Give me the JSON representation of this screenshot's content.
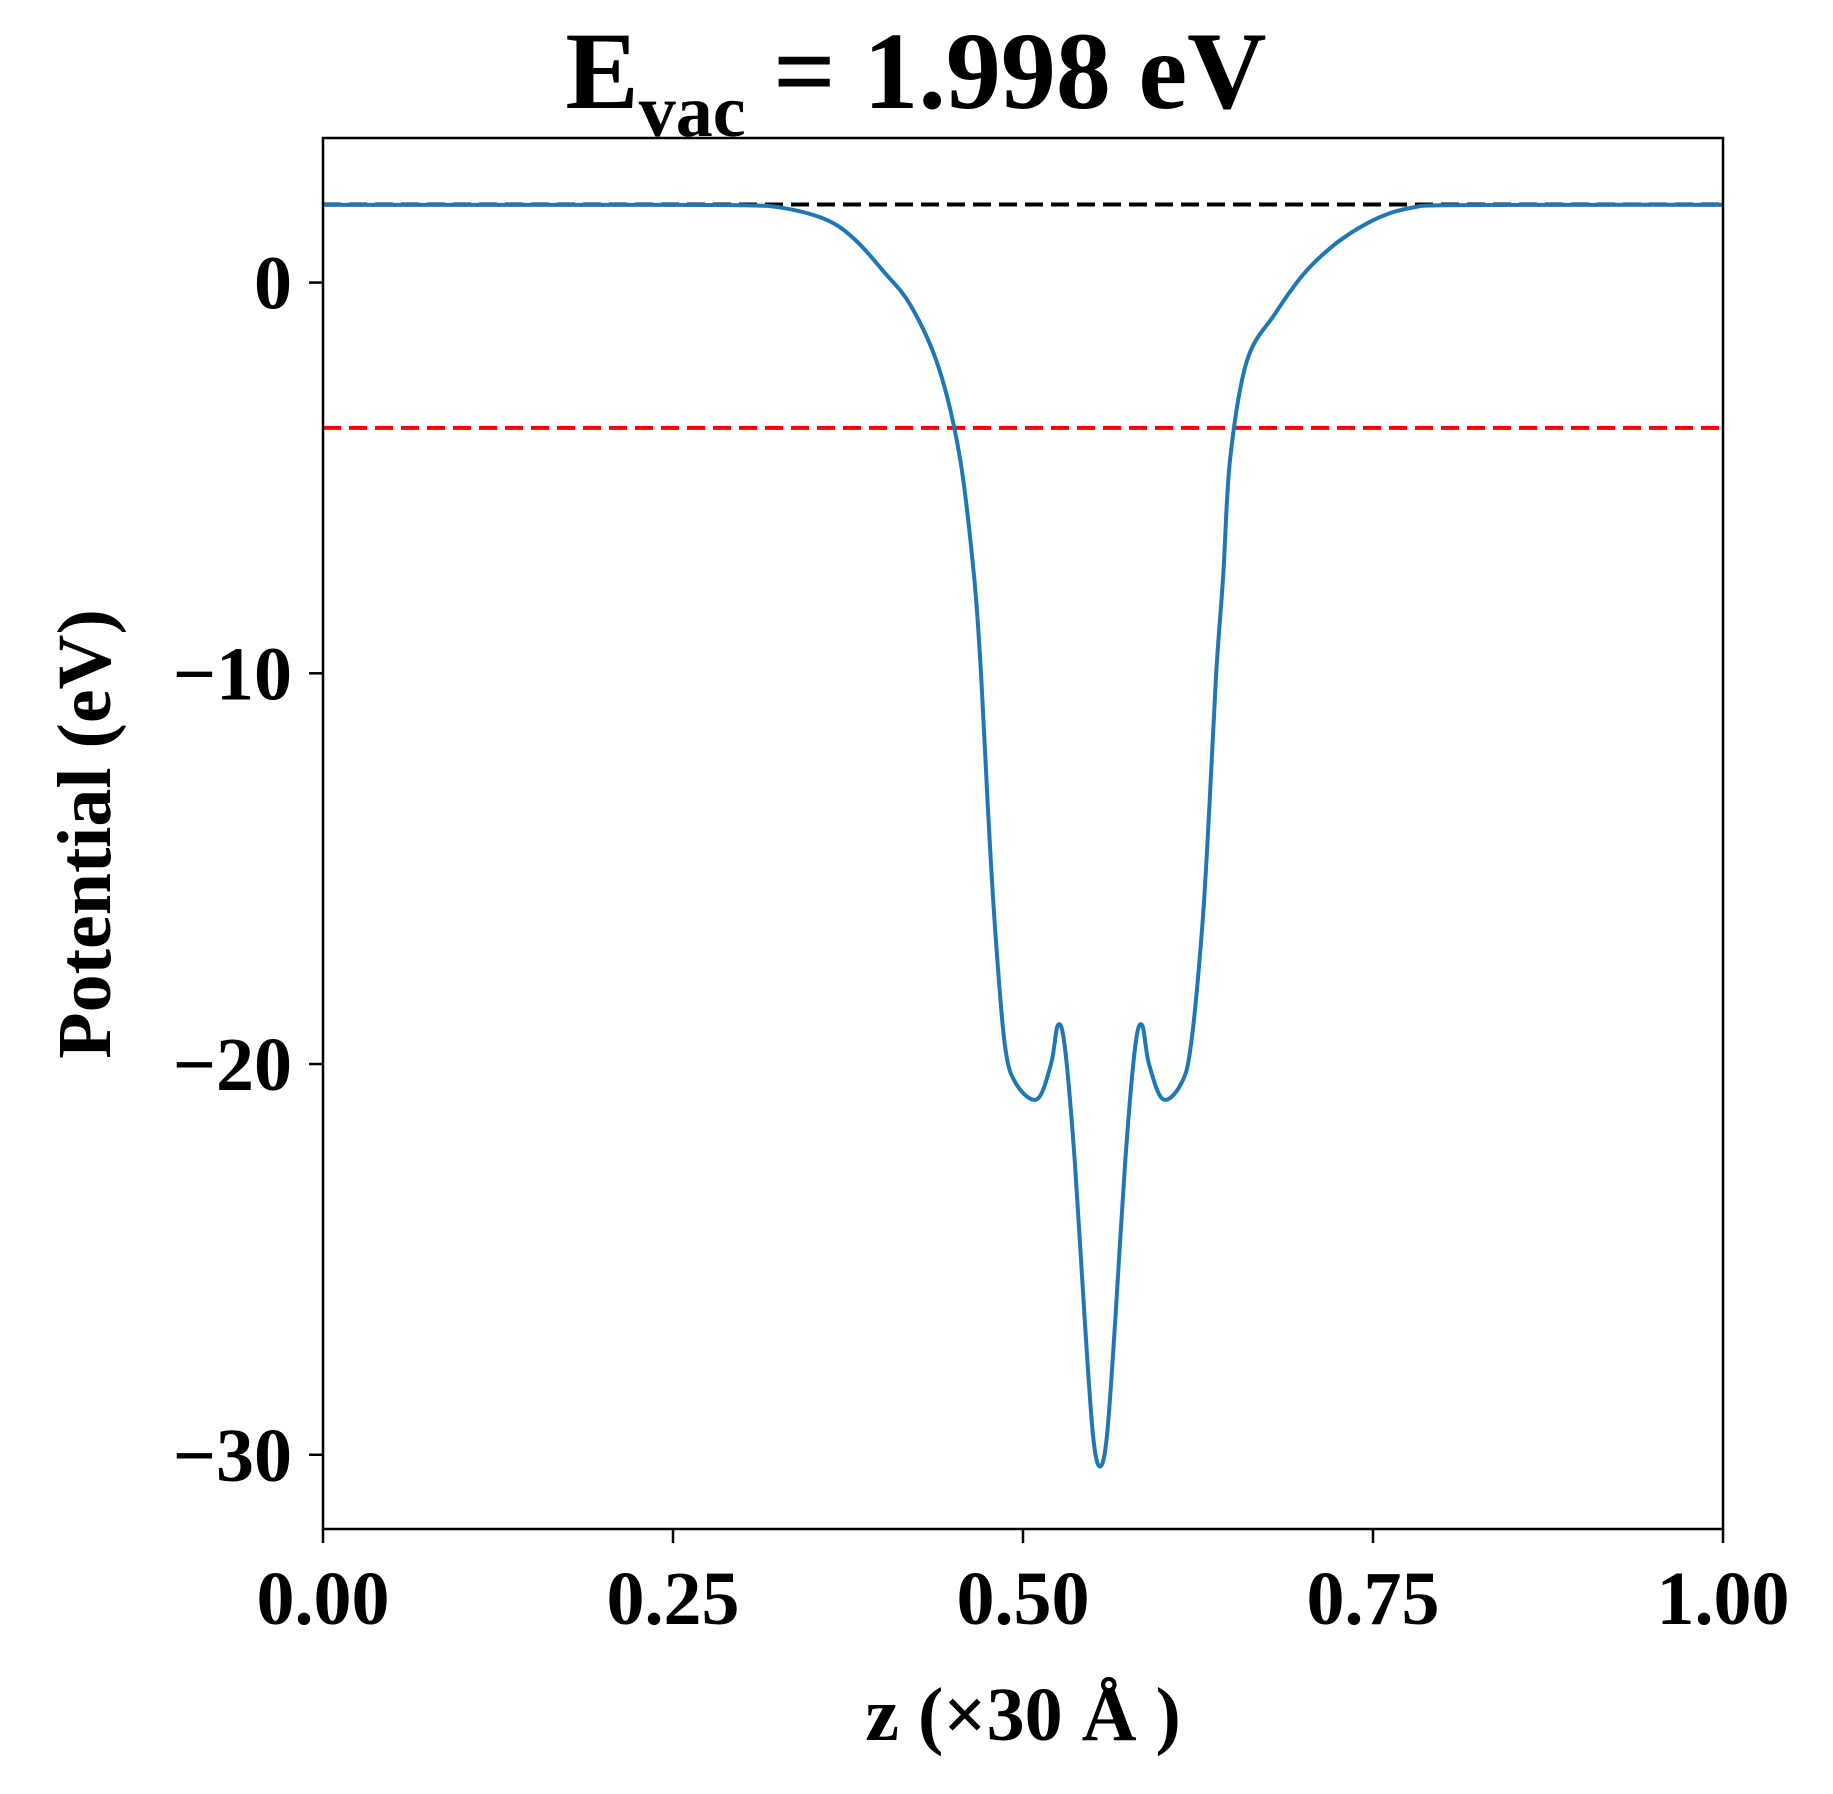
{
  "chart_data": {
    "type": "line",
    "title": {
      "main": "E",
      "subscript": "vac",
      "rest": " = 1.998 eV"
    },
    "xlabel": "z (×30 Å )",
    "ylabel": "Potential (eV)",
    "xlim": [
      0.0,
      1.0
    ],
    "ylim": [
      -31.9,
      3.7
    ],
    "x_ticks": [
      0.0,
      0.25,
      0.5,
      0.75,
      1.0
    ],
    "x_tick_labels": [
      "0.00",
      "0.25",
      "0.50",
      "0.75",
      "1.00"
    ],
    "y_ticks": [
      0,
      -10,
      -20,
      -30
    ],
    "y_tick_labels": [
      "0",
      "−10",
      "−20",
      "−30"
    ],
    "grid": false,
    "legend": "none",
    "series": [
      {
        "color": "#1f77b4",
        "points": [
          [
            0.0,
            1.99
          ],
          [
            0.1,
            1.99
          ],
          [
            0.2,
            1.99
          ],
          [
            0.3,
            1.98
          ],
          [
            0.33,
            1.9
          ],
          [
            0.36,
            1.6
          ],
          [
            0.38,
            1.1
          ],
          [
            0.4,
            0.3
          ],
          [
            0.42,
            -0.6
          ],
          [
            0.44,
            -2.2
          ],
          [
            0.455,
            -4.5
          ],
          [
            0.465,
            -7.5
          ],
          [
            0.47,
            -10.0
          ],
          [
            0.475,
            -13.5
          ],
          [
            0.48,
            -16.5
          ],
          [
            0.487,
            -19.5
          ],
          [
            0.495,
            -20.5
          ],
          [
            0.51,
            -20.9
          ],
          [
            0.52,
            -20.0
          ],
          [
            0.525,
            -19.0
          ],
          [
            0.53,
            -19.6
          ],
          [
            0.537,
            -22.5
          ],
          [
            0.544,
            -26.5
          ],
          [
            0.55,
            -29.5
          ],
          [
            0.555,
            -30.3
          ],
          [
            0.56,
            -29.5
          ],
          [
            0.566,
            -26.5
          ],
          [
            0.573,
            -22.5
          ],
          [
            0.58,
            -19.6
          ],
          [
            0.585,
            -19.0
          ],
          [
            0.59,
            -20.0
          ],
          [
            0.6,
            -20.9
          ],
          [
            0.613,
            -20.5
          ],
          [
            0.62,
            -19.5
          ],
          [
            0.628,
            -16.5
          ],
          [
            0.633,
            -13.5
          ],
          [
            0.638,
            -10.0
          ],
          [
            0.643,
            -7.5
          ],
          [
            0.648,
            -4.5
          ],
          [
            0.66,
            -2.0
          ],
          [
            0.68,
            -0.8
          ],
          [
            0.7,
            0.2
          ],
          [
            0.72,
            0.9
          ],
          [
            0.74,
            1.4
          ],
          [
            0.76,
            1.75
          ],
          [
            0.78,
            1.93
          ],
          [
            0.8,
            1.98
          ],
          [
            0.9,
            1.99
          ],
          [
            1.0,
            1.99
          ]
        ]
      }
    ],
    "reference_lines": [
      {
        "y": 1.998,
        "color": "#000000",
        "style": "dashed"
      },
      {
        "y": -3.72,
        "color": "#ff0000",
        "style": "dashed"
      }
    ]
  }
}
